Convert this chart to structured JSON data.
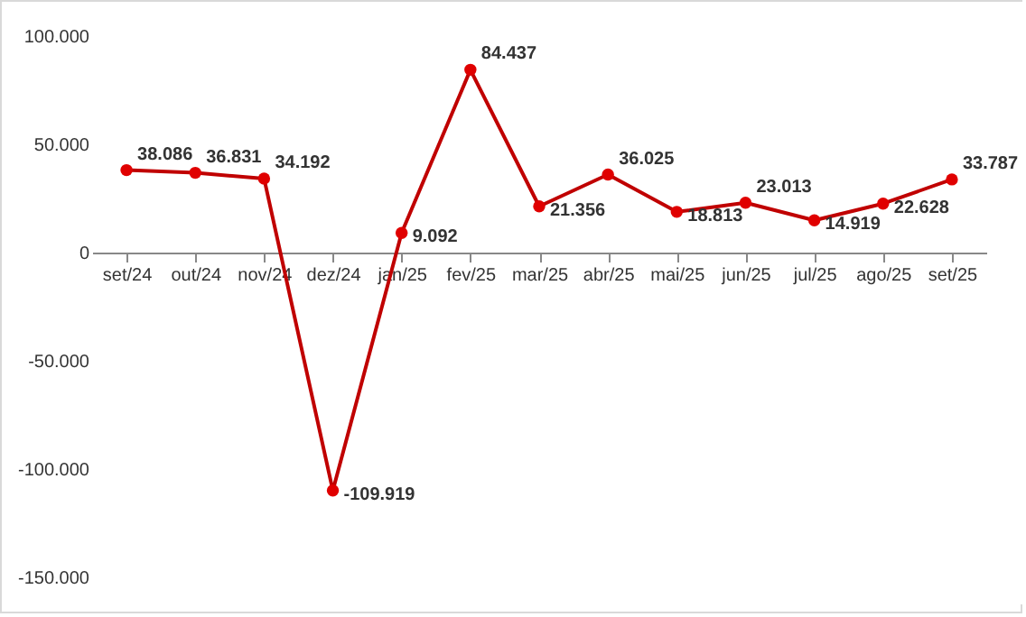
{
  "chart_data": {
    "type": "line",
    "categories": [
      "set/24",
      "out/24",
      "nov/24",
      "dez/24",
      "jan/25",
      "fev/25",
      "mar/25",
      "abr/25",
      "mai/25",
      "jun/25",
      "jul/25",
      "ago/25",
      "set/25"
    ],
    "series": [
      {
        "color": "#c00000",
        "values": [
          38086,
          36831,
          34192,
          -109919,
          9092,
          84437,
          21356,
          36025,
          18813,
          23013,
          14919,
          22628,
          33787
        ]
      }
    ],
    "value_labels": [
      "38.086",
      "36.831",
      "34.192",
      "-109.919",
      "9.092",
      "84.437",
      "21.356",
      "36.025",
      "18.813",
      "23.013",
      "14.919",
      "22.628",
      "33.787"
    ],
    "ylim": [
      -150000,
      100000
    ],
    "yticks": [
      {
        "value": 100000,
        "label": "100.000"
      },
      {
        "value": 50000,
        "label": "50.000"
      },
      {
        "value": 0,
        "label": "0"
      },
      {
        "value": -50000,
        "label": "-50.000"
      },
      {
        "value": -100000,
        "label": "-100.000"
      },
      {
        "value": -150000,
        "label": "-150.000"
      }
    ],
    "marker": "circle",
    "line_style": "solid"
  }
}
